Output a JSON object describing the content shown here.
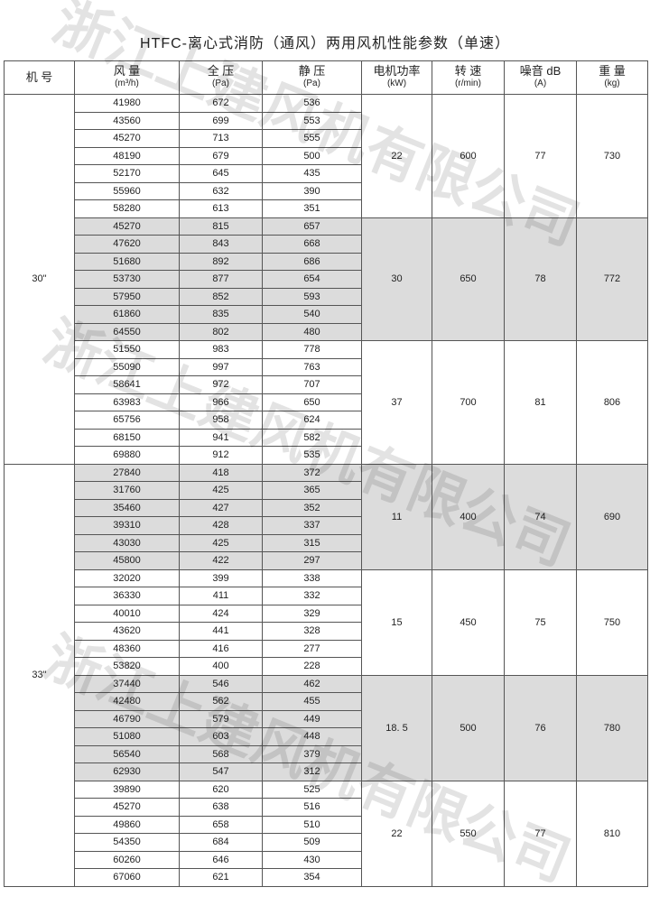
{
  "header": {
    "title": "HTFC-离心式消防（通风）两用风机性能参数（单速）"
  },
  "watermark": "浙江上建风机有限公司",
  "columns": [
    {
      "name": "机 号",
      "unit": null
    },
    {
      "name": "风 量",
      "unit": "(m³/h)"
    },
    {
      "name": "全 压",
      "unit": "(Pa)"
    },
    {
      "name": "静 压",
      "unit": "(Pa)"
    },
    {
      "name": "电机功率",
      "unit": "(kW)"
    },
    {
      "name": "转 速",
      "unit": "(r/min)"
    },
    {
      "name": "噪音 dB",
      "unit": "(A)"
    },
    {
      "name": "重 量",
      "unit": "(kg)"
    }
  ],
  "shade_color": "#dcdcdc",
  "groups": [
    {
      "model": "30\"",
      "subgroups": [
        {
          "power": "22",
          "speed": "600",
          "noise": "77",
          "weight": "730",
          "shaded": false,
          "rows": [
            [
              "41980",
              "672",
              "536"
            ],
            [
              "43560",
              "699",
              "553"
            ],
            [
              "45270",
              "713",
              "555"
            ],
            [
              "48190",
              "679",
              "500"
            ],
            [
              "52170",
              "645",
              "435"
            ],
            [
              "55960",
              "632",
              "390"
            ],
            [
              "58280",
              "613",
              "351"
            ]
          ]
        },
        {
          "power": "30",
          "speed": "650",
          "noise": "78",
          "weight": "772",
          "shaded": true,
          "rows": [
            [
              "45270",
              "815",
              "657"
            ],
            [
              "47620",
              "843",
              "668"
            ],
            [
              "51680",
              "892",
              "686"
            ],
            [
              "53730",
              "877",
              "654"
            ],
            [
              "57950",
              "852",
              "593"
            ],
            [
              "61860",
              "835",
              "540"
            ],
            [
              "64550",
              "802",
              "480"
            ]
          ]
        },
        {
          "power": "37",
          "speed": "700",
          "noise": "81",
          "weight": "806",
          "shaded": false,
          "rows": [
            [
              "51550",
              "983",
              "778"
            ],
            [
              "55090",
              "997",
              "763"
            ],
            [
              "58641",
              "972",
              "707"
            ],
            [
              "63983",
              "966",
              "650"
            ],
            [
              "65756",
              "958",
              "624"
            ],
            [
              "68150",
              "941",
              "582"
            ],
            [
              "69880",
              "912",
              "535"
            ]
          ]
        }
      ]
    },
    {
      "model": "33\"",
      "subgroups": [
        {
          "power": "11",
          "speed": "400",
          "noise": "74",
          "weight": "690",
          "shaded": true,
          "rows": [
            [
              "27840",
              "418",
              "372"
            ],
            [
              "31760",
              "425",
              "365"
            ],
            [
              "35460",
              "427",
              "352"
            ],
            [
              "39310",
              "428",
              "337"
            ],
            [
              "43030",
              "425",
              "315"
            ],
            [
              "45800",
              "422",
              "297"
            ]
          ]
        },
        {
          "power": "15",
          "speed": "450",
          "noise": "75",
          "weight": "750",
          "shaded": false,
          "rows": [
            [
              "32020",
              "399",
              "338"
            ],
            [
              "36330",
              "411",
              "332"
            ],
            [
              "40010",
              "424",
              "329"
            ],
            [
              "43620",
              "441",
              "328"
            ],
            [
              "48360",
              "416",
              "277"
            ],
            [
              "53820",
              "400",
              "228"
            ]
          ]
        },
        {
          "power": "18. 5",
          "speed": "500",
          "noise": "76",
          "weight": "780",
          "shaded": true,
          "rows": [
            [
              "37440",
              "546",
              "462"
            ],
            [
              "42480",
              "562",
              "455"
            ],
            [
              "46790",
              "579",
              "449"
            ],
            [
              "51080",
              "603",
              "448"
            ],
            [
              "56540",
              "568",
              "379"
            ],
            [
              "62930",
              "547",
              "312"
            ]
          ]
        },
        {
          "power": "22",
          "speed": "550",
          "noise": "77",
          "weight": "810",
          "shaded": false,
          "rows": [
            [
              "39890",
              "620",
              "525"
            ],
            [
              "45270",
              "638",
              "516"
            ],
            [
              "49860",
              "658",
              "510"
            ],
            [
              "54350",
              "684",
              "509"
            ],
            [
              "60260",
              "646",
              "430"
            ],
            [
              "67060",
              "621",
              "354"
            ]
          ]
        }
      ]
    }
  ]
}
